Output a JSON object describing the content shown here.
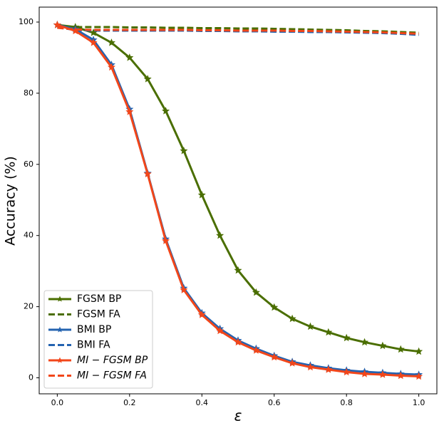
{
  "chart_data": {
    "type": "line",
    "x_label": "ε",
    "y_label": "Accuracy (%)",
    "x": [
      0,
      0.05,
      0.1,
      0.15,
      0.2,
      0.25,
      0.3,
      0.35,
      0.4,
      0.45,
      0.5,
      0.55,
      0.6,
      0.65,
      0.7,
      0.75,
      0.8,
      0.85,
      0.9,
      0.95,
      1.0
    ],
    "xlim": [
      -0.05,
      1.05
    ],
    "ylim": [
      -4.5,
      104.2
    ],
    "xticks": [
      {
        "value": 0,
        "label": "0.0"
      },
      0.2,
      0.4,
      0.6,
      0.8,
      {
        "value": 1,
        "label": "1.0"
      }
    ],
    "yticks": [
      0,
      20,
      40,
      60,
      80,
      100
    ],
    "grid": false,
    "legend": "lower left",
    "series": [
      {
        "name": "FGSM BP",
        "color": "#4a6e00",
        "dashed": false,
        "marker": "star",
        "italic": false,
        "values": [
          99.2,
          98.6,
          97,
          94.2,
          90,
          84,
          75,
          63.8,
          51.4,
          40,
          30.2,
          24,
          19.8,
          16.6,
          14.4,
          12.8,
          11.2,
          10,
          9,
          8,
          7.4
        ]
      },
      {
        "name": "FGSM FA",
        "color": "#4a6e00",
        "dashed": true,
        "marker": "none",
        "italic": false,
        "values": [
          98.8,
          98.6,
          98.6,
          98.6,
          98.5,
          98.5,
          98.4,
          98.4,
          98.3,
          98.3,
          98.2,
          98.2,
          98.1,
          98,
          97.9,
          97.8,
          97.7,
          97.5,
          97.4,
          97.2,
          97.0
        ]
      },
      {
        "name": "BMI BP",
        "color": "#2463b0",
        "dashed": false,
        "marker": "star",
        "italic": false,
        "values": [
          99.2,
          98,
          95,
          88,
          75.5,
          57.5,
          39,
          25.2,
          18.2,
          13.8,
          10.5,
          8.2,
          6.2,
          4.5,
          3.5,
          2.7,
          2.1,
          1.7,
          1.4,
          1.1,
          0.9
        ]
      },
      {
        "name": "BMI FA",
        "color": "#2463b0",
        "dashed": true,
        "marker": "none",
        "italic": false,
        "values": [
          98.5,
          97.8,
          97.6,
          97.6,
          97.6,
          97.6,
          97.6,
          97.6,
          97.5,
          97.5,
          97.4,
          97.4,
          97.3,
          97.3,
          97.2,
          97.2,
          97.1,
          97,
          96.9,
          96.7,
          96.4
        ]
      },
      {
        "name": "MI − FGSM BP",
        "color": "#f2461a",
        "dashed": false,
        "marker": "star",
        "italic": true,
        "values": [
          99.2,
          97.5,
          94.2,
          87.3,
          74.8,
          57.3,
          38.5,
          24.7,
          17.7,
          13.2,
          10,
          7.7,
          5.8,
          4.1,
          3,
          2.3,
          1.6,
          1.1,
          0.9,
          0.6,
          0.4
        ]
      },
      {
        "name": "MI − FGSM FA",
        "color": "#f2461a",
        "dashed": true,
        "marker": "none",
        "italic": true,
        "values": [
          98.4,
          97.9,
          97.8,
          97.8,
          97.8,
          97.8,
          97.8,
          97.8,
          97.7,
          97.7,
          97.6,
          97.6,
          97.6,
          97.5,
          97.5,
          97.4,
          97.3,
          97.2,
          97.1,
          96.9,
          96.7
        ]
      }
    ]
  }
}
